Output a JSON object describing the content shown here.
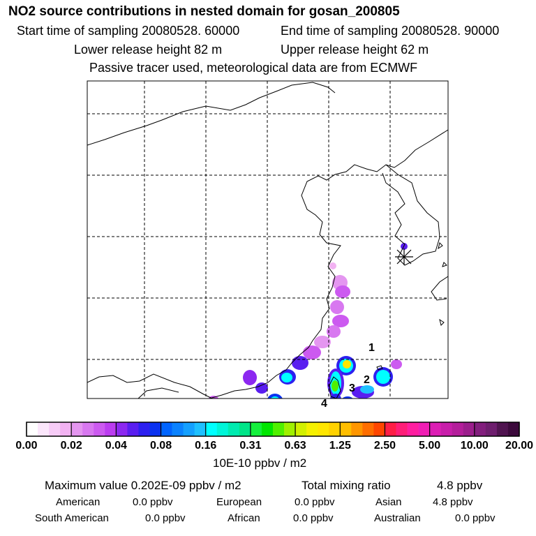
{
  "header": {
    "title": "NO2 source contributions in nested domain for gosan_200805",
    "start": "Start time of sampling 20080528. 60000",
    "end": "End time of sampling 20080528. 90000",
    "lower": "Lower release height   82 m",
    "upper": "Upper release height   62 m",
    "tracer": "Passive tracer used, meteorological data are from ECMWF"
  },
  "chart_data": {
    "type": "heatmap",
    "title": "NO2 source contributions in nested domain for gosan_200805",
    "colorbar_ticks": [
      "0.00",
      "0.02",
      "0.04",
      "0.08",
      "0.16",
      "0.31",
      "0.63",
      "1.25",
      "2.50",
      "5.00",
      "10.00",
      "20.00"
    ],
    "colorbar_units": "10E-10 ppbv / m2",
    "colorbar_colors": [
      [
        "#ffffff",
        "#fbe6fb",
        "#f7ccf7",
        "#f2b2f2"
      ],
      [
        "#e496f0",
        "#d878f0",
        "#cc5af0",
        "#bb3cf0"
      ],
      [
        "#8c28f0",
        "#5a1ef0",
        "#2d20f0",
        "#0a32f0"
      ],
      [
        "#0064ff",
        "#0a82ff",
        "#14a0ff",
        "#1ec0ff"
      ],
      [
        "#00ffff",
        "#00f5d8",
        "#00ebb0",
        "#00e588"
      ],
      [
        "#14f03c",
        "#00e600",
        "#50f000",
        "#a0f000"
      ],
      [
        "#d2f000",
        "#f5f000",
        "#ffe600",
        "#ffd200"
      ],
      [
        "#ffbe00",
        "#ff9600",
        "#ff6e00",
        "#ff4600"
      ],
      [
        "#ff1e46",
        "#ff1e78",
        "#ff1ea0",
        "#f01eb4"
      ],
      [
        "#dc1eb4",
        "#c81eaa",
        "#b41e9b",
        "#9b1e8c"
      ],
      [
        "#821e7d",
        "#6e1e6e",
        "#501450",
        "#3c0a3c"
      ]
    ],
    "source_labels": [
      "1",
      "2",
      "3",
      "4"
    ],
    "receptor": "gosan",
    "max_value": "0.202E-09 ppbv / m2",
    "total_mixing_ratio": "4.8 ppbv"
  },
  "stats": {
    "max_text": "Maximum value  0.202E-09 ppbv / m2",
    "total_label": "Total mixing ratio",
    "total_value": "4.8 ppbv",
    "regions": [
      {
        "name": "American",
        "value": "0.0 ppbv"
      },
      {
        "name": "European",
        "value": "0.0 ppbv"
      },
      {
        "name": "Asian",
        "value": "4.8 ppbv"
      },
      {
        "name": "South American",
        "value": "0.0 ppbv"
      },
      {
        "name": "African",
        "value": "0.0 ppbv"
      },
      {
        "name": "Australian",
        "value": "0.0 ppbv"
      }
    ]
  }
}
